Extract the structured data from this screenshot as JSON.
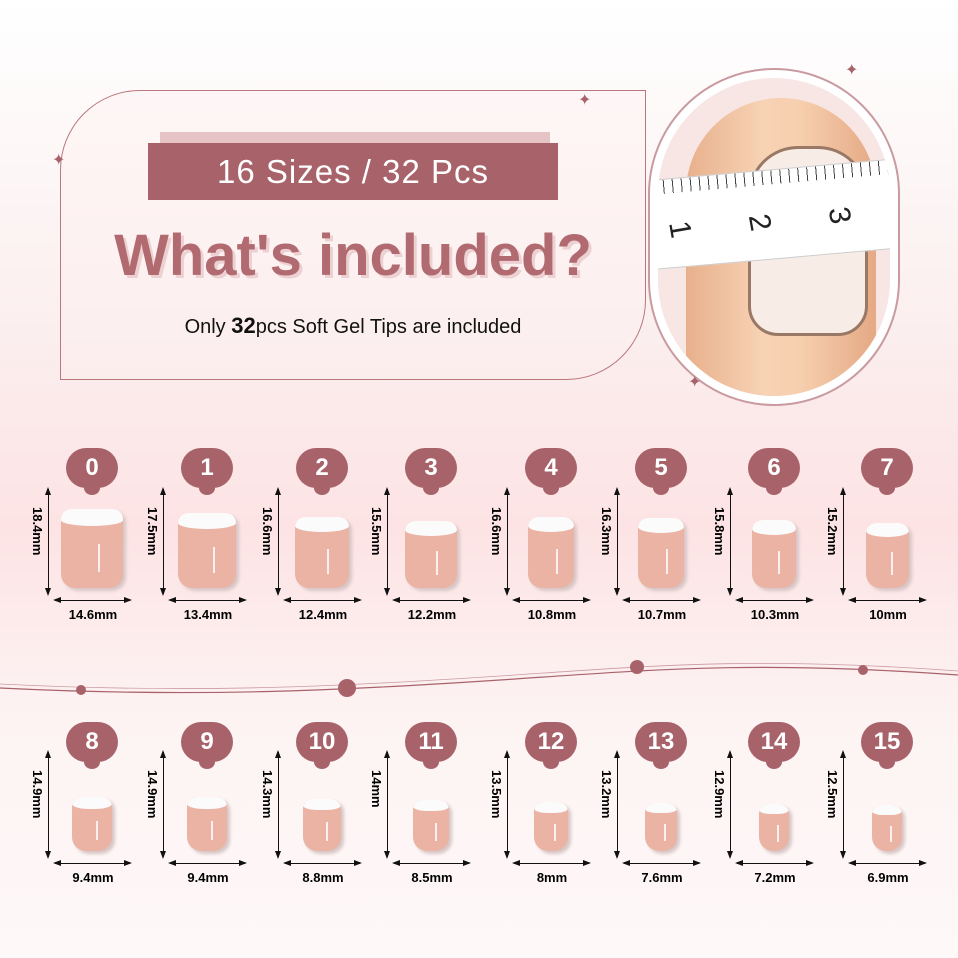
{
  "header": {
    "banner": "16 Sizes / 32 Pcs",
    "title": "What's included?",
    "subtitle_pre": "Only ",
    "subtitle_count": "32",
    "subtitle_post": "pcs Soft Gel Tips are included"
  },
  "tape": {
    "marks": [
      "1",
      "2",
      "3"
    ]
  },
  "colors": {
    "accent": "#a8636a",
    "nail": "#eab3a3",
    "tip": "#fbfbfb"
  },
  "sizes": [
    {
      "label": "0",
      "length": "18.4mm",
      "width": "14.6mm"
    },
    {
      "label": "1",
      "length": "17.5mm",
      "width": "13.4mm"
    },
    {
      "label": "2",
      "length": "16.6mm",
      "width": "12.4mm"
    },
    {
      "label": "3",
      "length": "15.5mm",
      "width": "12.2mm"
    },
    {
      "label": "4",
      "length": "16.6mm",
      "width": "10.8mm"
    },
    {
      "label": "5",
      "length": "16.3mm",
      "width": "10.7mm"
    },
    {
      "label": "6",
      "length": "15.8mm",
      "width": "10.3mm"
    },
    {
      "label": "7",
      "length": "15.2mm",
      "width": "10mm"
    },
    {
      "label": "8",
      "length": "14.9mm",
      "width": "9.4mm"
    },
    {
      "label": "9",
      "length": "14.9mm",
      "width": "9.4mm"
    },
    {
      "label": "10",
      "length": "14.3mm",
      "width": "8.8mm"
    },
    {
      "label": "11",
      "length": "14mm",
      "width": "8.5mm"
    },
    {
      "label": "12",
      "length": "13.5mm",
      "width": "8mm"
    },
    {
      "label": "13",
      "length": "13.2mm",
      "width": "7.6mm"
    },
    {
      "label": "14",
      "length": "12.9mm",
      "width": "7.2mm"
    },
    {
      "label": "15",
      "length": "12.5mm",
      "width": "6.9mm"
    }
  ]
}
